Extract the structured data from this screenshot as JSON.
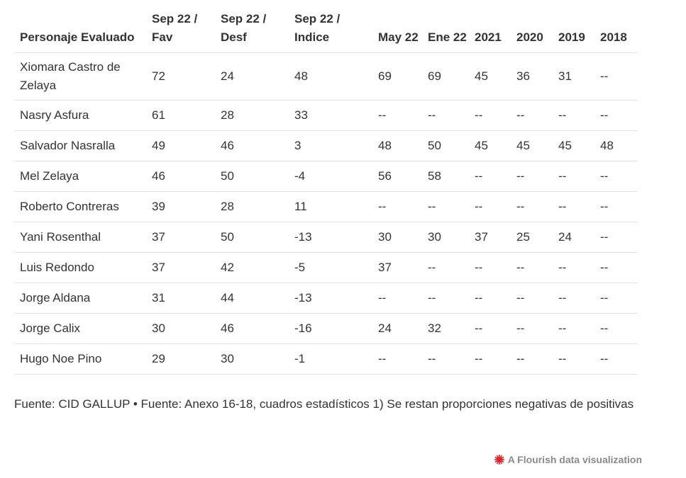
{
  "chart_data": {
    "type": "table",
    "columns": [
      "Personaje Evaluado",
      "Sep 22 / Fav",
      "Sep 22 / Desf",
      "Sep 22 / Indice",
      "May 22",
      "Ene 22",
      "2021",
      "2020",
      "2019",
      "2018"
    ],
    "rows": [
      [
        "Xiomara Castro de Zelaya",
        "72",
        "24",
        "48",
        "69",
        "69",
        "45",
        "36",
        "31",
        "--"
      ],
      [
        "Nasry Asfura",
        "61",
        "28",
        "33",
        "--",
        "--",
        "--",
        "--",
        "--",
        "--"
      ],
      [
        "Salvador Nasralla",
        "49",
        "46",
        "3",
        "48",
        "50",
        "45",
        "45",
        "45",
        "48"
      ],
      [
        "Mel Zelaya",
        "46",
        "50",
        "-4",
        "56",
        "58",
        "--",
        "--",
        "--",
        "--"
      ],
      [
        "Roberto Contreras",
        "39",
        "28",
        "11",
        "--",
        "--",
        "--",
        "--",
        "--",
        "--"
      ],
      [
        "Yani Rosenthal",
        "37",
        "50",
        "-13",
        "30",
        "30",
        "37",
        "25",
        "24",
        "--"
      ],
      [
        "Luis Redondo",
        "37",
        "42",
        "-5",
        "37",
        "--",
        "--",
        "--",
        "--",
        "--"
      ],
      [
        "Jorge Aldana",
        "31",
        "44",
        "-13",
        "--",
        "--",
        "--",
        "--",
        "--",
        "--"
      ],
      [
        "Jorge Calix",
        "30",
        "46",
        "-16",
        "24",
        "32",
        "--",
        "--",
        "--",
        "--"
      ],
      [
        "Hugo Noe Pino",
        "29",
        "30",
        "-1",
        "--",
        "--",
        "--",
        "--",
        "--",
        "--"
      ]
    ]
  },
  "footer": {
    "source": "Fuente: CID GALLUP • Fuente: Anexo 16-18, cuadros estadísticos 1) Se restan proporciones negativas de positivas"
  },
  "credit": {
    "text": "A Flourish data visualization",
    "logo_color": "#e8212b"
  }
}
